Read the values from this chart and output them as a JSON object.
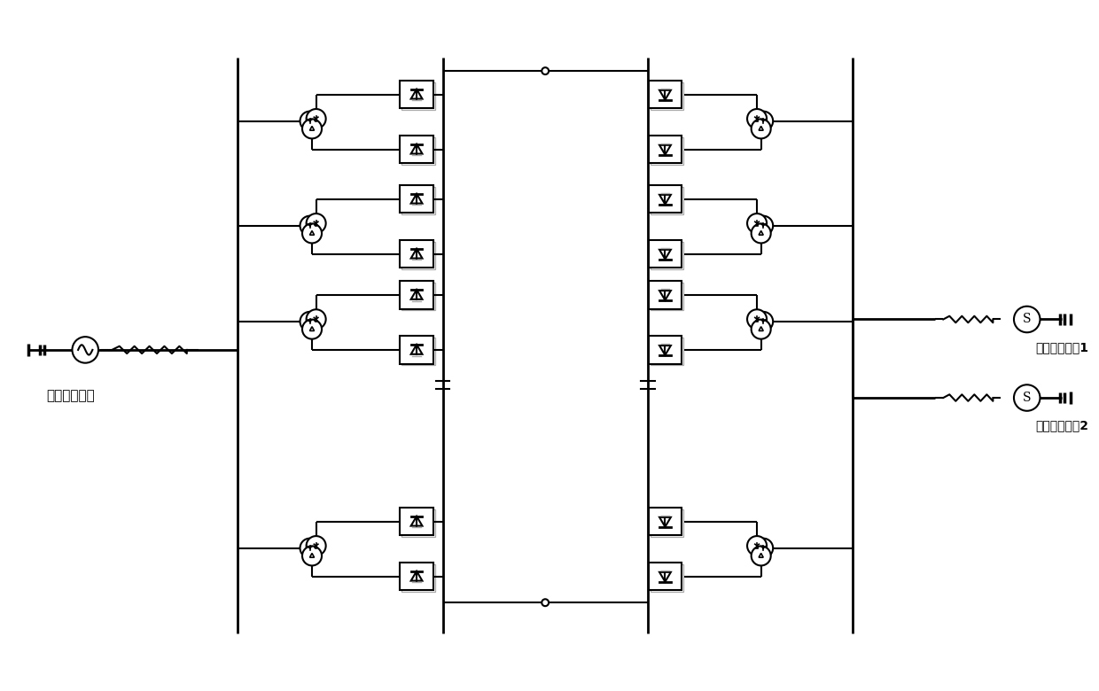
{
  "bg_color": "#ffffff",
  "line_color": "#000000",
  "gray_color": "#aaaaaa",
  "text_send": "送端交流系统",
  "text_recv1": "受端交流系统1",
  "text_recv2": "受端交流系统2",
  "fig_width": 12.4,
  "fig_height": 7.8,
  "dpi": 100
}
